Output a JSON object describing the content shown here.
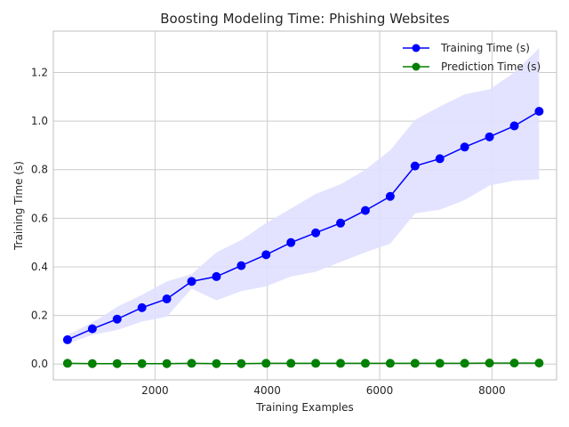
{
  "chart_data": {
    "type": "line",
    "title": "Boosting Modeling Time: Phishing Websites",
    "xlabel": "Training Examples",
    "ylabel": "Training Time (s)",
    "xlim": [
      190,
      9150
    ],
    "ylim": [
      -0.065,
      1.37
    ],
    "xticks": [
      2000,
      4000,
      6000,
      8000
    ],
    "yticks": [
      0.0,
      0.2,
      0.4,
      0.6,
      0.8,
      1.0,
      1.2
    ],
    "ytick_labels": [
      "0.0",
      "0.2",
      "0.4",
      "0.6",
      "0.8",
      "1.0",
      "1.2"
    ],
    "grid": true,
    "legend_position": "top-right",
    "x": [
      442,
      884,
      1326,
      1768,
      2210,
      2652,
      3094,
      3536,
      3978,
      4420,
      4862,
      5304,
      5746,
      6188,
      6630,
      7072,
      7514,
      7956,
      8398,
      8840
    ],
    "series": [
      {
        "name": "Training Time (s)",
        "color": "#0000ff",
        "band_color": "#e0e0ff",
        "values": [
          0.1,
          0.145,
          0.185,
          0.232,
          0.268,
          0.34,
          0.36,
          0.405,
          0.45,
          0.5,
          0.54,
          0.58,
          0.632,
          0.69,
          0.815,
          0.845,
          0.893,
          0.935,
          0.98,
          1.04
        ],
        "upper": [
          0.12,
          0.17,
          0.235,
          0.285,
          0.34,
          0.37,
          0.46,
          0.51,
          0.58,
          0.64,
          0.7,
          0.74,
          0.8,
          0.88,
          1.005,
          1.06,
          1.11,
          1.13,
          1.2,
          1.3
        ],
        "lower": [
          0.085,
          0.12,
          0.14,
          0.175,
          0.195,
          0.31,
          0.262,
          0.3,
          0.32,
          0.36,
          0.38,
          0.42,
          0.46,
          0.495,
          0.62,
          0.635,
          0.675,
          0.735,
          0.755,
          0.76
        ]
      },
      {
        "name": "Prediction Time (s)",
        "color": "#008000",
        "values": [
          0.003,
          0.002,
          0.002,
          0.002,
          0.002,
          0.003,
          0.002,
          0.002,
          0.003,
          0.003,
          0.003,
          0.003,
          0.003,
          0.003,
          0.003,
          0.003,
          0.003,
          0.004,
          0.004,
          0.004
        ]
      }
    ]
  }
}
